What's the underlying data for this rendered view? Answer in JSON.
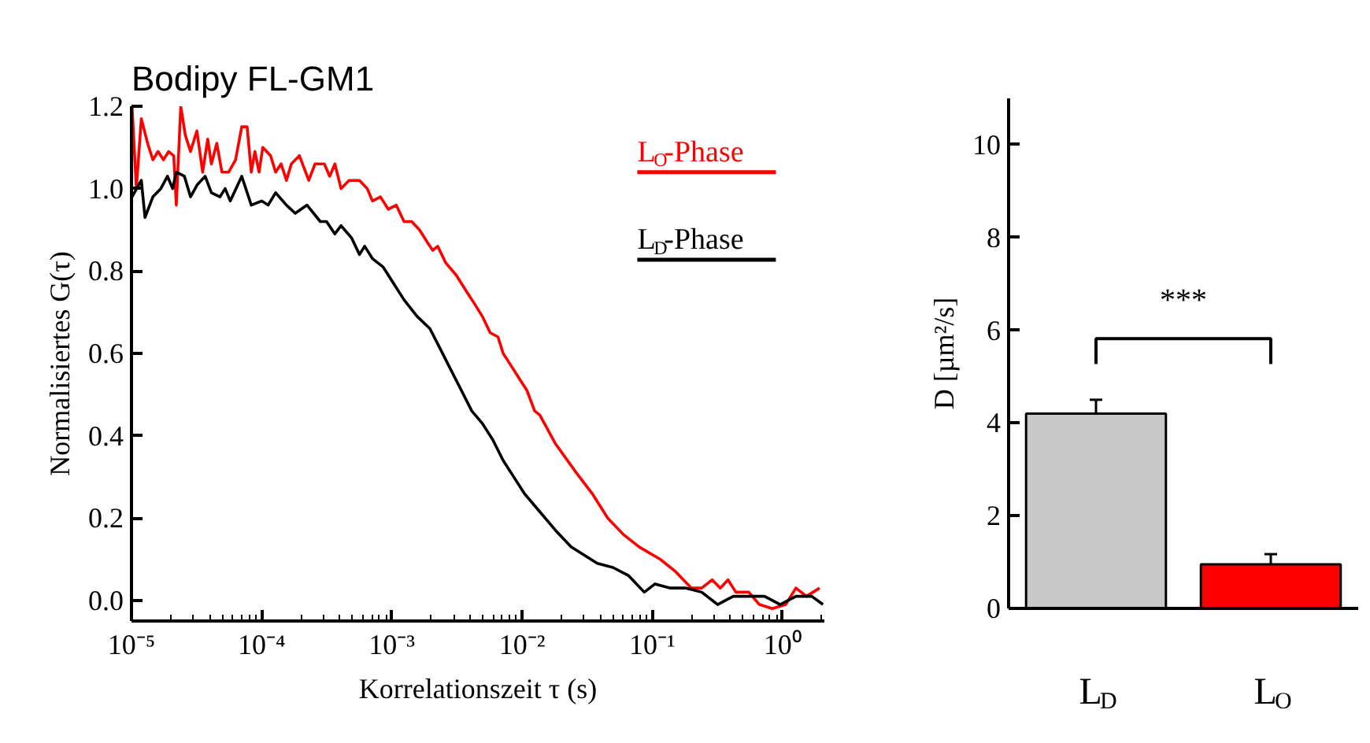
{
  "chart_data": [
    {
      "type": "line",
      "title": "Bodipy FL-GM1",
      "xlabel": "Korrelationszeit τ (s)",
      "ylabel": "Normalisiertes G(τ)",
      "log": "x",
      "legend": "top right",
      "grid": false,
      "xlim": [
        1e-05,
        2.1
      ],
      "ylim": [
        -0.05,
        1.2
      ],
      "xticks": [
        {
          "value": 1e-05,
          "label": "10⁻⁵"
        },
        {
          "value": 0.0001,
          "label": "10⁻⁴"
        },
        {
          "value": 0.001,
          "label": "10⁻³"
        },
        {
          "value": 0.01,
          "label": "10⁻²"
        },
        {
          "value": 0.1,
          "label": "10⁻¹"
        },
        {
          "value": 1,
          "label": "10⁰"
        }
      ],
      "yticks": [
        {
          "value": 0,
          "label": "0.0"
        },
        0.2,
        0.4,
        0.6,
        0.8,
        {
          "value": 1,
          "label": "1.0"
        },
        1.2
      ],
      "series": [
        {
          "name": "L$_{O}$-Phase",
          "color": "#ff0000",
          "x": [
            1.01e-05,
            1.09e-05,
            1.19e-05,
            1.33e-05,
            1.46e-05,
            1.6e-05,
            1.76e-05,
            1.93e-05,
            2.11e-05,
            2.21e-05,
            2.39e-05,
            2.59e-05,
            2.84e-05,
            3.18e-05,
            3.52e-05,
            3.85e-05,
            4.11e-05,
            4.52e-05,
            4.95e-05,
            5.58e-05,
            6.3e-05,
            7.03e-05,
            7.73e-05,
            8.32e-05,
            8.87e-05,
            9.55e-05,
            0.000102,
            0.000117,
            0.000128,
            0.000141,
            0.000155,
            0.000169,
            0.000195,
            0.00023,
            0.000257,
            0.000303,
            0.000333,
            0.000365,
            0.000407,
            0.000469,
            0.000564,
            0.000647,
            0.00071,
            0.000817,
            0.000938,
            0.00108,
            0.00124,
            0.00142,
            0.00163,
            0.00187,
            0.00206,
            0.00225,
            0.00259,
            0.00312,
            0.00375,
            0.00432,
            0.00495,
            0.00569,
            0.00653,
            0.00716,
            0.00824,
            0.00946,
            0.0109,
            0.0125,
            0.0137,
            0.0181,
            0.0261,
            0.0345,
            0.0455,
            0.0601,
            0.0793,
            0.115,
            0.151,
            0.2,
            0.24,
            0.289,
            0.333,
            0.382,
            0.439,
            0.552,
            0.665,
            0.837,
            1.06,
            1.27,
            1.53,
            1.93
          ],
          "values": [
            1.2,
            1.0,
            1.17,
            1.11,
            1.07,
            1.09,
            1.07,
            1.09,
            1.08,
            0.96,
            1.2,
            1.13,
            1.09,
            1.14,
            1.04,
            1.12,
            1.06,
            1.11,
            1.04,
            1.04,
            1.07,
            1.15,
            1.15,
            1.04,
            1.09,
            1.04,
            1.1,
            1.08,
            1.04,
            1.06,
            1.02,
            1.06,
            1.08,
            1.02,
            1.06,
            1.06,
            1.03,
            1.06,
            1.0,
            1.02,
            1.02,
            1.0,
            0.97,
            0.98,
            0.95,
            0.96,
            0.92,
            0.92,
            0.9,
            0.87,
            0.85,
            0.86,
            0.82,
            0.79,
            0.75,
            0.72,
            0.69,
            0.65,
            0.64,
            0.6,
            0.57,
            0.54,
            0.51,
            0.46,
            0.45,
            0.38,
            0.31,
            0.26,
            0.2,
            0.16,
            0.13,
            0.1,
            0.07,
            0.03,
            0.03,
            0.05,
            0.03,
            0.05,
            0.02,
            0.02,
            -0.01,
            -0.02,
            -0.01,
            0.03,
            0.01,
            0.03
          ]
        },
        {
          "name": "L$_{D}$-Phase",
          "color": "#000000",
          "x": [
            1.01e-05,
            1.19e-05,
            1.27e-05,
            1.46e-05,
            1.68e-05,
            1.89e-05,
            2.07e-05,
            2.21e-05,
            2.55e-05,
            2.84e-05,
            3.21e-05,
            3.68e-05,
            4.11e-05,
            4.78e-05,
            5.24e-05,
            5.74e-05,
            7.03e-05,
            8.32e-05,
            0.0001,
            0.000112,
            0.000128,
            0.000155,
            0.000181,
            0.000223,
            0.000282,
            0.000315,
            0.000365,
            0.000407,
            0.000491,
            0.000564,
            0.000618,
            0.00071,
            0.000855,
            0.00103,
            0.00124,
            0.00156,
            0.00196,
            0.00236,
            0.00284,
            0.00342,
            0.00411,
            0.00495,
            0.00596,
            0.00716,
            0.00863,
            0.0104,
            0.0125,
            0.0181,
            0.0238,
            0.0378,
            0.0499,
            0.0659,
            0.0869,
            0.105,
            0.138,
            0.182,
            0.24,
            0.318,
            0.419,
            0.552,
            0.729,
            0.962,
            1.27,
            1.68,
            2.05
          ],
          "values": [
            0.98,
            1.02,
            0.93,
            0.98,
            1.0,
            1.03,
            1.0,
            1.04,
            1.03,
            0.98,
            1.01,
            1.03,
            0.99,
            0.98,
            1.0,
            0.97,
            1.03,
            0.96,
            0.97,
            0.96,
            0.99,
            0.96,
            0.94,
            0.96,
            0.92,
            0.92,
            0.89,
            0.91,
            0.88,
            0.84,
            0.86,
            0.83,
            0.81,
            0.77,
            0.73,
            0.69,
            0.66,
            0.61,
            0.56,
            0.51,
            0.46,
            0.43,
            0.39,
            0.34,
            0.3,
            0.26,
            0.23,
            0.17,
            0.13,
            0.09,
            0.08,
            0.06,
            0.02,
            0.04,
            0.03,
            0.03,
            0.02,
            -0.01,
            0.01,
            0.01,
            0.01,
            -0.01,
            0.01,
            0.01,
            -0.01
          ]
        }
      ]
    },
    {
      "type": "bar",
      "ylabel": "D [µm²/s]",
      "categories": [
        "L$_{D}$",
        "L$_{O}$"
      ],
      "values": [
        4.2,
        0.95
      ],
      "colors": [
        "#c8c8c8",
        "#ff0000"
      ],
      "errors": [
        0.3,
        0.22
      ],
      "ylim": [
        0,
        11
      ],
      "yticks": [
        0,
        2,
        4,
        6,
        8,
        10
      ],
      "grid": false,
      "annotations": [
        "***"
      ]
    }
  ]
}
